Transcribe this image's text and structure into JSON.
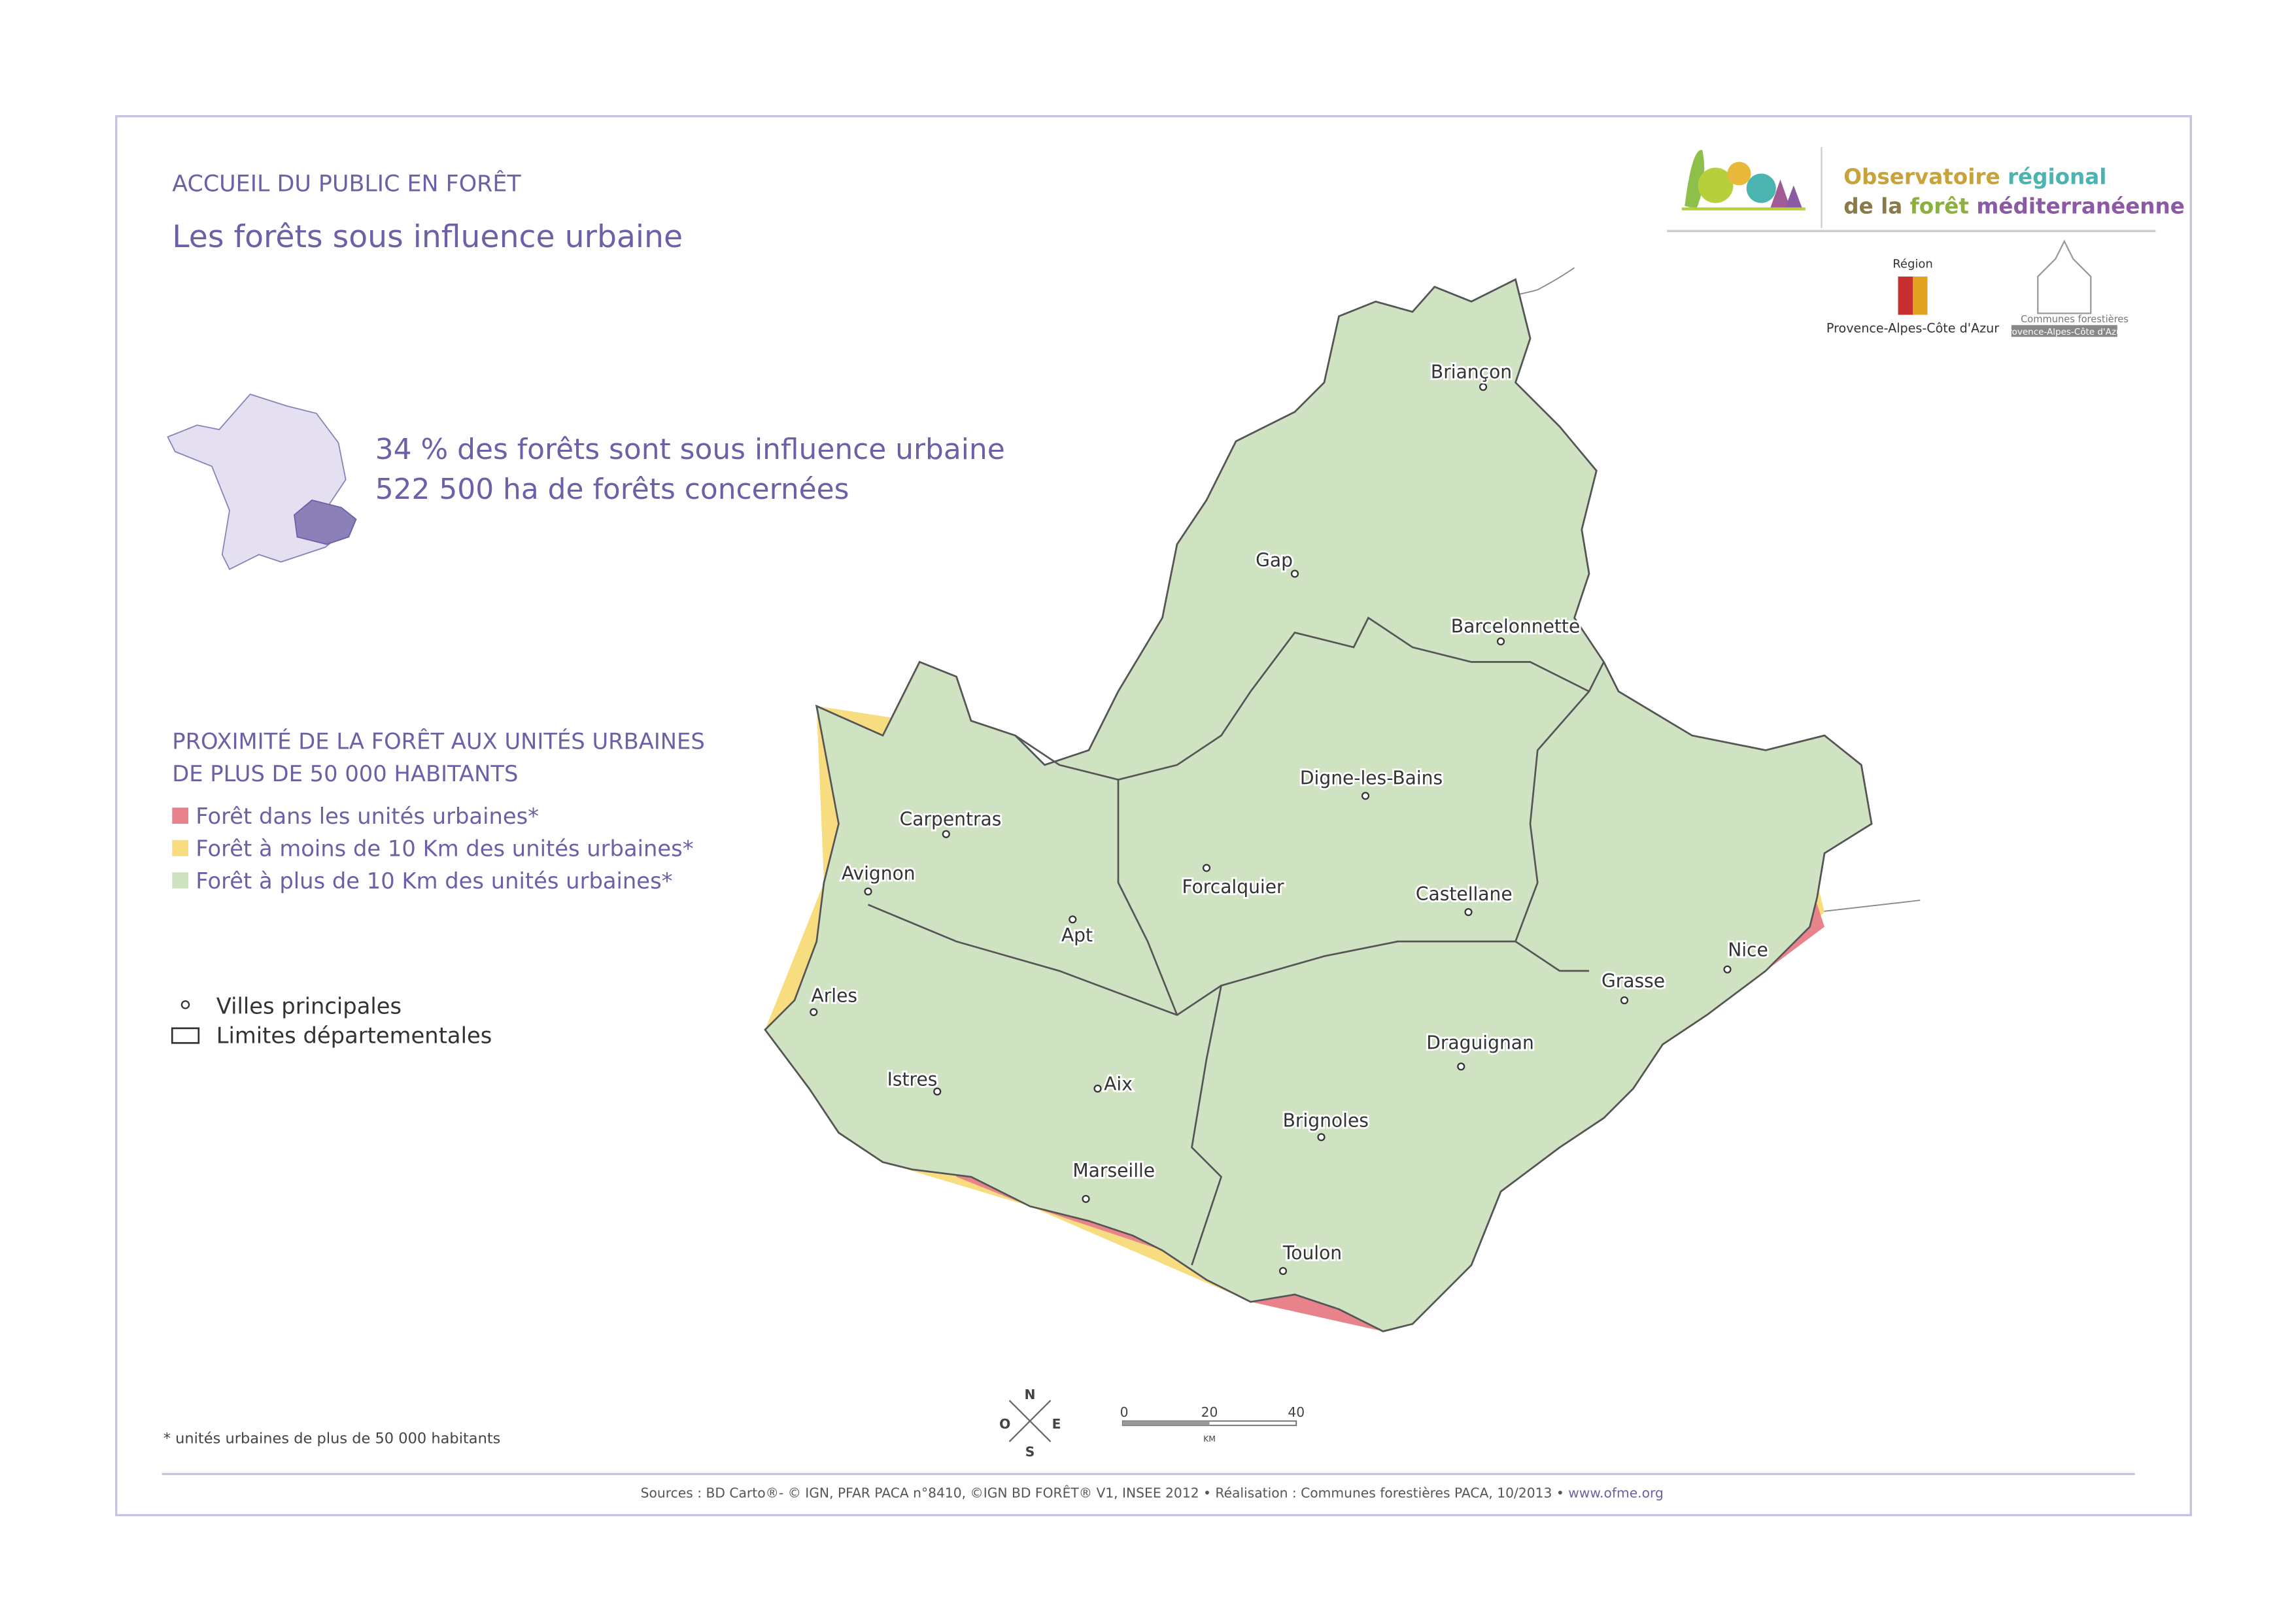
{
  "header": {
    "kicker": "ACCUEIL DU PUBLIC EN FORÊT",
    "title": "Les forêts sous influence urbaine"
  },
  "logo": {
    "line1": [
      "Observatoire",
      "régional"
    ],
    "line2": [
      "de la",
      "forêt",
      "méditerranéenne"
    ]
  },
  "partners": {
    "region_top": "Région",
    "region_bottom": "Provence-Alpes-Côte d'Azur",
    "communes_top": "Communes forestières",
    "communes_bottom": "Provence-Alpes-Côte d'Azur"
  },
  "stats": [
    "34 % des forêts sont sous influence urbaine",
    "522 500 ha de forêts concernées"
  ],
  "legend": {
    "title": [
      "PROXIMITÉ DE LA FORÊT AUX UNITÉS URBAINES",
      "DE PLUS DE 50 000 HABITANTS"
    ],
    "items": [
      "Forêt dans les unités urbaines*",
      "Forêt à moins de 10 Km des unités urbaines*",
      "Forêt à plus de 10 Km des unités urbaines*"
    ],
    "symbols": [
      "Villes principales",
      "Limites départementales"
    ]
  },
  "cities": [
    "Briançon",
    "Gap",
    "Barcelonnette",
    "Digne-les-Bains",
    "Forcalquier",
    "Castellane",
    "Carpentras",
    "Avignon",
    "Apt",
    "Arles",
    "Istres",
    "Aix",
    "Marseille",
    "Toulon",
    "Brignoles",
    "Draguignan",
    "Grasse",
    "Nice"
  ],
  "compass": {
    "north": "N",
    "east": "E",
    "south": "S",
    "west": "O"
  },
  "scale": {
    "ticks": [
      0,
      20,
      40
    ],
    "unit": "KM"
  },
  "footnote": "* unités urbaines de plus de 50 000 habitants",
  "sources": {
    "text": "Sources : BD Carto®- © IGN, PFAR PACA n°8410,  ©IGN BD FORÊT® V1, INSEE 2012 • Réalisation : Communes forestières PACA, 10/2013 • ",
    "website": "www.ofme.org"
  }
}
